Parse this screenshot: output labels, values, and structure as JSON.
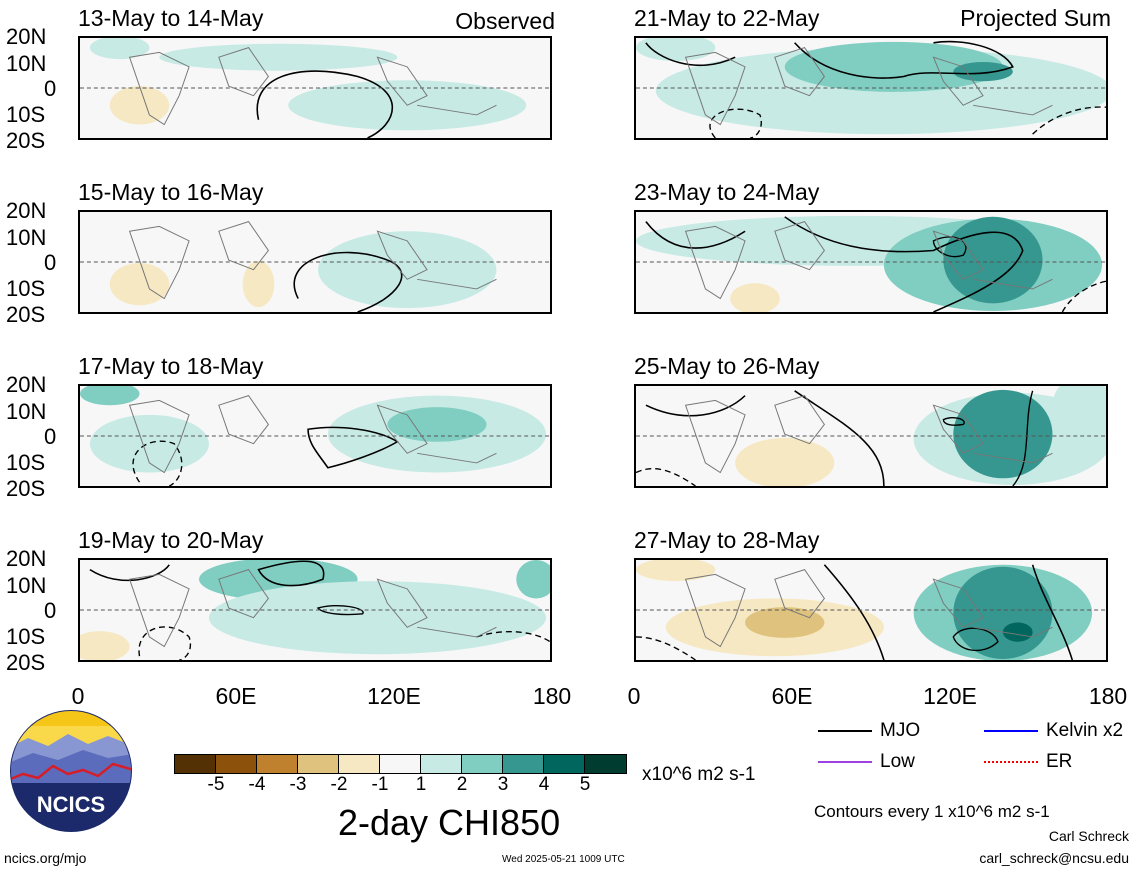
{
  "panels": [
    {
      "title": "13-May to 14-May",
      "tag": "Observed"
    },
    {
      "title": "15-May to 16-May",
      "tag": ""
    },
    {
      "title": "17-May to 18-May",
      "tag": ""
    },
    {
      "title": "19-May to 20-May",
      "tag": ""
    },
    {
      "title": "21-May to 22-May",
      "tag": "Projected Sum"
    },
    {
      "title": "23-May to 24-May",
      "tag": ""
    },
    {
      "title": "25-May to 26-May",
      "tag": ""
    },
    {
      "title": "27-May to 28-May",
      "tag": ""
    }
  ],
  "lat_labels": [
    "20N",
    "10N",
    "0",
    "10S",
    "20S"
  ],
  "lon_labels": [
    "0",
    "60E",
    "120E",
    "180"
  ],
  "colorbar": {
    "colors": [
      "#543005",
      "#8c510a",
      "#bf812d",
      "#dfc27d",
      "#f6e8c3",
      "#f7f7f7",
      "#c7eae5",
      "#80cdc1",
      "#35978f",
      "#01665e",
      "#003c30"
    ],
    "ticks": [
      "-5",
      "-4",
      "-3",
      "-2",
      "-1",
      "1",
      "2",
      "3",
      "4",
      "5"
    ],
    "units": "x10^6 m2 s-1",
    "title": "2-day CHI850"
  },
  "legend": {
    "items": [
      {
        "label": "MJO",
        "color": "#000000"
      },
      {
        "label": "Kelvin x2",
        "color": "#0000ff"
      },
      {
        "label": "Low",
        "color": "#a040e0"
      },
      {
        "label": "ER",
        "color": "#ff0000"
      }
    ],
    "contour_note": "Contours every 1 x10^6 m2 s-1"
  },
  "logo_text": "NCICS",
  "footer": {
    "url": "ncics.org/mjo",
    "timestamp": "Wed 2025-05-21 1009 UTC",
    "author": "Carl Schreck",
    "email": "carl_schreck@ncsu.edu"
  }
}
